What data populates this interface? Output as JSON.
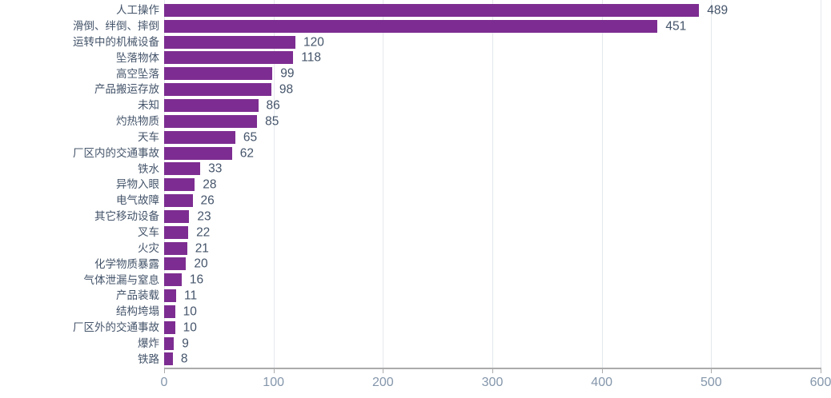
{
  "chart_data": {
    "type": "bar",
    "orientation": "horizontal",
    "title": "",
    "xlabel": "",
    "ylabel": "",
    "categories": [
      "人工操作",
      "滑倒、绊倒、摔倒",
      "运转中的机械设备",
      "坠落物体",
      "高空坠落",
      "产品搬运存放",
      "未知",
      "灼热物质",
      "天车",
      "厂区内的交通事故",
      "铁水",
      "异物入眼",
      "电气故障",
      "其它移动设备",
      "叉车",
      "火灾",
      "化学物质暴露",
      "气体泄漏与窒息",
      "产品装载",
      "结构垮塌",
      "厂区外的交通事故",
      "爆炸",
      "铁路"
    ],
    "values": [
      489,
      451,
      120,
      118,
      99,
      98,
      86,
      85,
      65,
      62,
      33,
      28,
      26,
      23,
      22,
      21,
      20,
      16,
      11,
      10,
      10,
      9,
      8
    ],
    "value_labels": [
      "489",
      "451",
      "120",
      "118",
      "99",
      "98",
      "86",
      "85",
      "65",
      "62",
      "33",
      "28",
      "26",
      "23",
      "22",
      "21",
      "20",
      "16",
      "11",
      "10",
      "10",
      "9",
      "8"
    ],
    "xlim": [
      0,
      600
    ],
    "xticks": [
      0,
      100,
      200,
      300,
      400,
      500,
      600
    ],
    "xtick_labels": [
      "0",
      "100",
      "200",
      "300",
      "400",
      "500",
      "600"
    ],
    "grid": true,
    "legend": "none",
    "colors": {
      "bar": "#7D2D91",
      "category_label": "#44546A",
      "value_label": "#44546A",
      "tick_label": "#8496AB",
      "gridline": "#E4E8EC",
      "axis_line": "#ABABAB",
      "tick_mark": "#ABABAB",
      "background": "#FFFFFF"
    }
  }
}
